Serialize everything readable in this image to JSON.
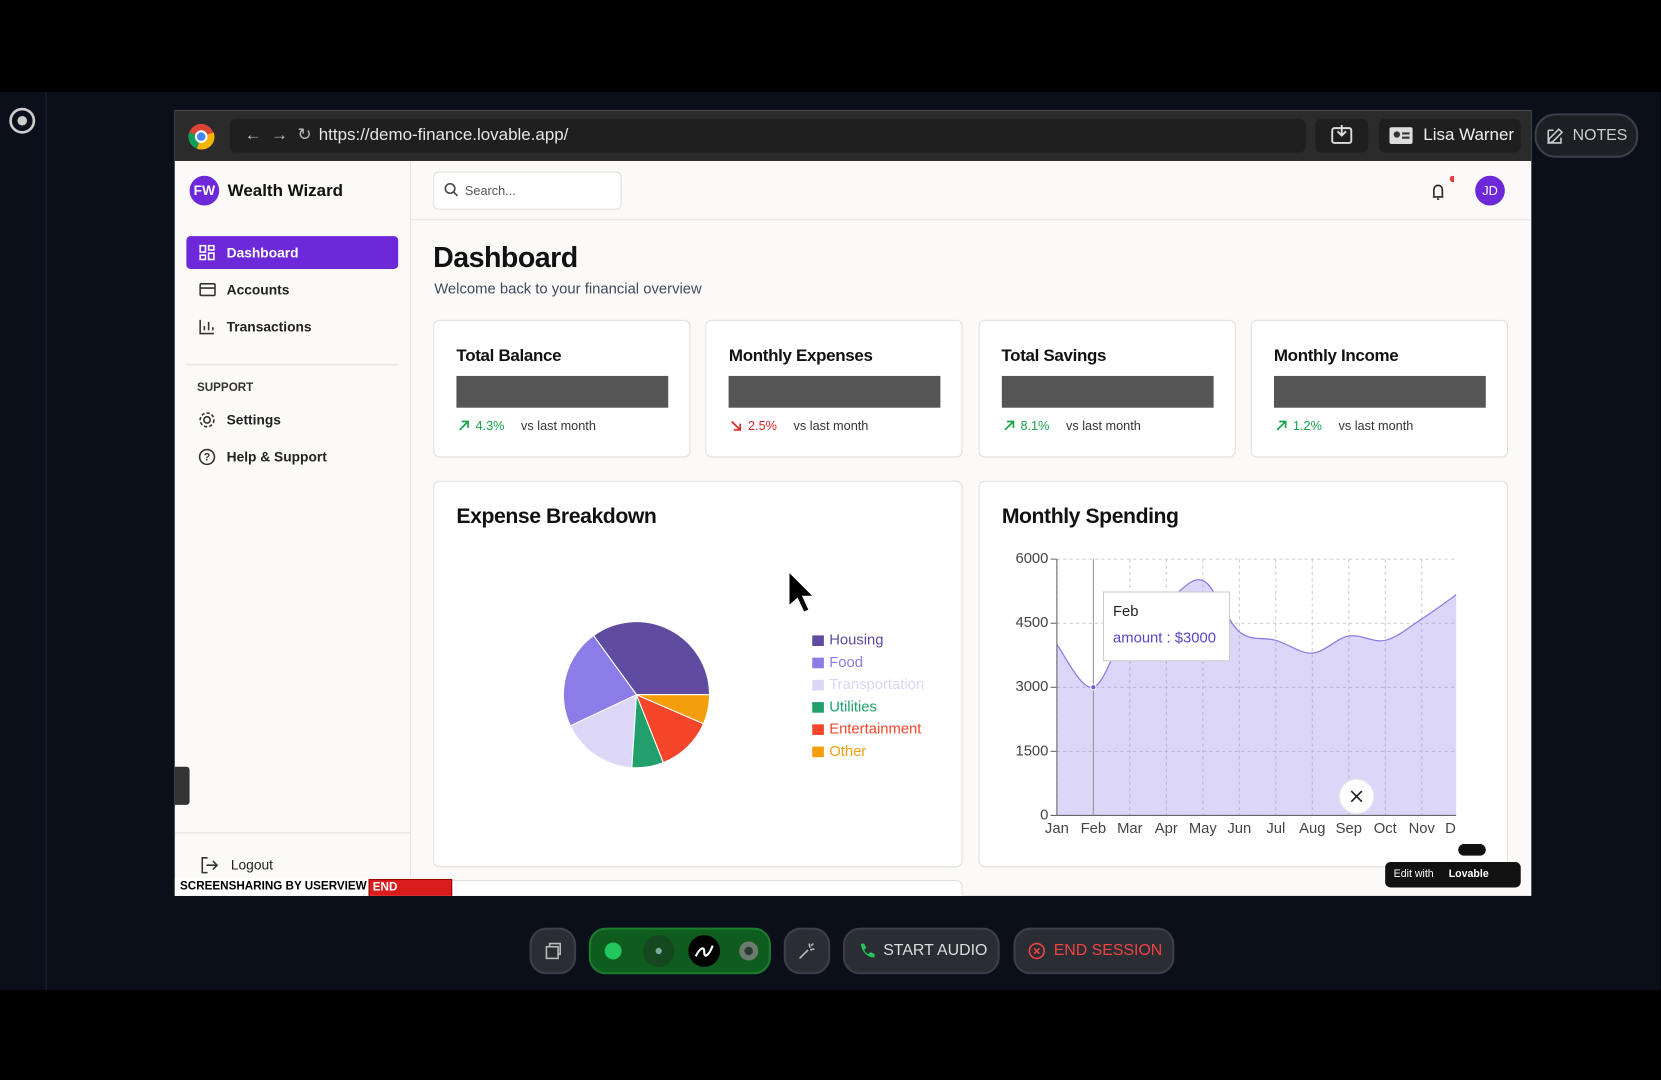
{
  "browser": {
    "url": "https://demo-finance.lovable.app/",
    "profile": "Lisa Warner",
    "notes": "NOTES"
  },
  "sidebar": {
    "logo": "FW",
    "brand": "Wealth Wizard",
    "nav": [
      "Dashboard",
      "Accounts",
      "Transactions"
    ],
    "support_heading": "SUPPORT",
    "support": [
      "Settings",
      "Help & Support"
    ],
    "logout": "Logout"
  },
  "topbar": {
    "search": "Search...",
    "avatar": "JD"
  },
  "header": {
    "title": "Dashboard",
    "subtitle": "Welcome back to your financial overview"
  },
  "cards": [
    {
      "title": "Total Balance",
      "change": "4.3%",
      "trend": "up",
      "note": "vs last month"
    },
    {
      "title": "Monthly Expenses",
      "change": "2.5%",
      "trend": "down",
      "note": "vs last month"
    },
    {
      "title": "Total Savings",
      "change": "8.1%",
      "trend": "up",
      "note": "vs last month"
    },
    {
      "title": "Monthly Income",
      "change": "1.2%",
      "trend": "up",
      "note": "vs last month"
    }
  ],
  "chart_data": [
    {
      "type": "pie",
      "title": "Expense Breakdown",
      "categories": [
        "Housing",
        "Food",
        "Transportation",
        "Utilities",
        "Entertainment",
        "Other"
      ],
      "values": [
        35,
        22,
        17,
        7,
        12.5,
        6.5
      ],
      "colors": [
        "#5f4b9f",
        "#8b7ce8",
        "#dcd6f7",
        "#22a06b",
        "#f5452a",
        "#f59e0b"
      ]
    },
    {
      "type": "area",
      "title": "Monthly Spending",
      "categories": [
        "Jan",
        "Feb",
        "Mar",
        "Apr",
        "May",
        "Jun",
        "Jul",
        "Aug",
        "Sep",
        "Oct",
        "Nov",
        "Dec"
      ],
      "values": [
        4000,
        3000,
        4500,
        5000,
        5500,
        4300,
        4100,
        3800,
        4200,
        4100,
        4600,
        5200
      ],
      "color": "#8b7ce8",
      "ylim": [
        0,
        6000
      ],
      "yticks": [
        0,
        1500,
        3000,
        4500,
        6000
      ],
      "grid": true,
      "tooltip": {
        "index": 1,
        "text": "amount : $3000"
      }
    }
  ],
  "overlay": {
    "watermark": "SCREENSHARING BY USERVIEW",
    "watermark_action": "END SESSION",
    "edit_with": "Edit with",
    "lovable": "Lovable",
    "start_audio": "START AUDIO",
    "end_session": "END SESSION"
  }
}
